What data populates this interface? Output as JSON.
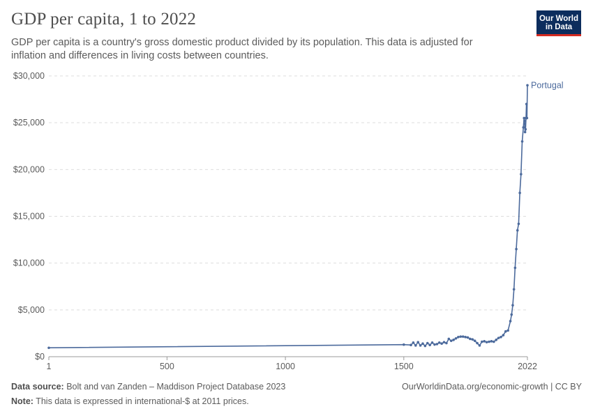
{
  "header": {
    "title": "GDP per capita, 1 to 2022",
    "subtitle": "GDP per capita is a country's gross domestic product divided by its population. This data is adjusted for inflation and differences in living costs between countries."
  },
  "logo": {
    "line1": "Our World",
    "line2": "in Data",
    "bg_color": "#0c2d5d",
    "accent_color": "#d42b21"
  },
  "footer": {
    "source_label": "Data source:",
    "source_text": "Bolt and van Zanden – Maddison Project Database 2023",
    "note_label": "Note:",
    "note_text": "This data is expressed in international-$ at 2011 prices.",
    "right_text": "OurWorldinData.org/economic-growth | CC BY"
  },
  "chart_data": {
    "type": "line",
    "title": "GDP per capita, 1 to 2022",
    "xlabel": "",
    "ylabel": "",
    "xlim": [
      1,
      2022
    ],
    "ylim": [
      0,
      30000
    ],
    "x_ticks": [
      1,
      500,
      1000,
      1500,
      2022
    ],
    "x_tick_labels": [
      "1",
      "500",
      "1000",
      "1500",
      "2022"
    ],
    "y_ticks": [
      0,
      5000,
      10000,
      15000,
      20000,
      25000,
      30000
    ],
    "y_tick_labels": [
      "$0",
      "$5,000",
      "$10,000",
      "$15,000",
      "$20,000",
      "$25,000",
      "$30,000"
    ],
    "grid": "horizontal dashed",
    "legend": "end-of-line label",
    "color": "#4c6a9c",
    "series": [
      {
        "name": "Portugal",
        "points": [
          [
            1,
            950
          ],
          [
            1500,
            1290
          ],
          [
            1530,
            1250
          ],
          [
            1540,
            1500
          ],
          [
            1550,
            1200
          ],
          [
            1560,
            1550
          ],
          [
            1570,
            1200
          ],
          [
            1580,
            1400
          ],
          [
            1590,
            1150
          ],
          [
            1600,
            1450
          ],
          [
            1610,
            1250
          ],
          [
            1620,
            1500
          ],
          [
            1630,
            1300
          ],
          [
            1640,
            1350
          ],
          [
            1650,
            1500
          ],
          [
            1660,
            1400
          ],
          [
            1670,
            1550
          ],
          [
            1680,
            1450
          ],
          [
            1690,
            1900
          ],
          [
            1700,
            1700
          ],
          [
            1710,
            1800
          ],
          [
            1720,
            1950
          ],
          [
            1730,
            2100
          ],
          [
            1740,
            2150
          ],
          [
            1750,
            2150
          ],
          [
            1760,
            2100
          ],
          [
            1770,
            2050
          ],
          [
            1780,
            1900
          ],
          [
            1790,
            1850
          ],
          [
            1800,
            1700
          ],
          [
            1810,
            1450
          ],
          [
            1820,
            1200
          ],
          [
            1830,
            1600
          ],
          [
            1840,
            1650
          ],
          [
            1850,
            1550
          ],
          [
            1860,
            1600
          ],
          [
            1870,
            1650
          ],
          [
            1880,
            1600
          ],
          [
            1890,
            1800
          ],
          [
            1900,
            2000
          ],
          [
            1910,
            2100
          ],
          [
            1920,
            2300
          ],
          [
            1930,
            2700
          ],
          [
            1940,
            2800
          ],
          [
            1950,
            3800
          ],
          [
            1955,
            4500
          ],
          [
            1960,
            5500
          ],
          [
            1965,
            7200
          ],
          [
            1970,
            9500
          ],
          [
            1975,
            11500
          ],
          [
            1980,
            13500
          ],
          [
            1985,
            14200
          ],
          [
            1990,
            17500
          ],
          [
            1995,
            19500
          ],
          [
            2000,
            23000
          ],
          [
            2005,
            24500
          ],
          [
            2008,
            25500
          ],
          [
            2010,
            25200
          ],
          [
            2012,
            24000
          ],
          [
            2014,
            24300
          ],
          [
            2016,
            25500
          ],
          [
            2018,
            27000
          ],
          [
            2020,
            25500
          ],
          [
            2022,
            29000
          ]
        ]
      }
    ]
  }
}
